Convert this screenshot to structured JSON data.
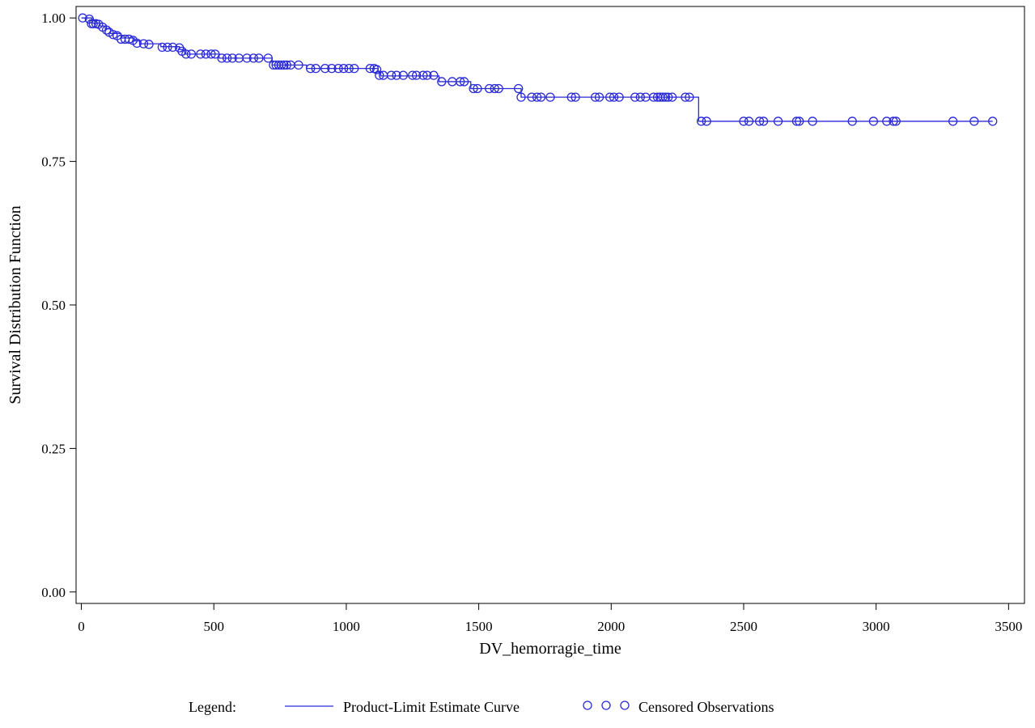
{
  "chart_data": {
    "type": "line",
    "title": "",
    "xlabel": "DV_hemorragie_time",
    "ylabel": "Survival Distribution Function",
    "xlim": [
      -20,
      3560
    ],
    "ylim": [
      -0.02,
      1.02
    ],
    "x_ticks": [
      0,
      500,
      1000,
      1500,
      2000,
      2500,
      3000,
      3500
    ],
    "x_tick_labels": [
      "0",
      "500",
      "1000",
      "1500",
      "2000",
      "2500",
      "3000",
      "3500"
    ],
    "y_ticks": [
      0.0,
      0.25,
      0.5,
      0.75,
      1.0
    ],
    "y_tick_labels": [
      "0.00",
      "0.25",
      "0.50",
      "0.75",
      "1.00"
    ],
    "grid": false,
    "line_color": "#2a2ad6",
    "legend": {
      "title": "Legend:",
      "placement": "bottom",
      "items": [
        {
          "label": "Product-Limit Estimate Curve",
          "kind": "line"
        },
        {
          "label": "Censored Observations",
          "kind": "circles"
        }
      ]
    },
    "series": [
      {
        "name": "Product-Limit Estimate Curve",
        "kind": "step",
        "x": [
          0,
          30,
          40,
          70,
          90,
          110,
          150,
          200,
          220,
          300,
          370,
          390,
          520,
          710,
          720,
          800,
          850,
          1000,
          1120,
          1130,
          1340,
          1350,
          1460,
          1470,
          1650,
          1660,
          2320,
          2330,
          3440
        ],
        "y": [
          1.0,
          1.0,
          0.991,
          0.986,
          0.981,
          0.973,
          0.965,
          0.96,
          0.955,
          0.95,
          0.945,
          0.937,
          0.93,
          0.93,
          0.918,
          0.918,
          0.912,
          0.912,
          0.906,
          0.899,
          0.899,
          0.889,
          0.889,
          0.877,
          0.877,
          0.862,
          0.862,
          0.82,
          0.82
        ]
      },
      {
        "name": "Censored Observations",
        "kind": "points",
        "points": [
          [
            5,
            1.0
          ],
          [
            30,
            0.998
          ],
          [
            38,
            0.99
          ],
          [
            45,
            0.99
          ],
          [
            55,
            0.99
          ],
          [
            65,
            0.989
          ],
          [
            80,
            0.984
          ],
          [
            95,
            0.979
          ],
          [
            105,
            0.975
          ],
          [
            120,
            0.971
          ],
          [
            135,
            0.969
          ],
          [
            150,
            0.963
          ],
          [
            165,
            0.963
          ],
          [
            180,
            0.963
          ],
          [
            195,
            0.961
          ],
          [
            210,
            0.956
          ],
          [
            235,
            0.955
          ],
          [
            255,
            0.954
          ],
          [
            305,
            0.949
          ],
          [
            325,
            0.949
          ],
          [
            345,
            0.949
          ],
          [
            370,
            0.948
          ],
          [
            380,
            0.942
          ],
          [
            395,
            0.937
          ],
          [
            415,
            0.937
          ],
          [
            450,
            0.937
          ],
          [
            470,
            0.937
          ],
          [
            490,
            0.937
          ],
          [
            505,
            0.937
          ],
          [
            530,
            0.93
          ],
          [
            550,
            0.93
          ],
          [
            570,
            0.93
          ],
          [
            595,
            0.93
          ],
          [
            625,
            0.93
          ],
          [
            650,
            0.93
          ],
          [
            670,
            0.93
          ],
          [
            705,
            0.93
          ],
          [
            725,
            0.918
          ],
          [
            735,
            0.918
          ],
          [
            745,
            0.918
          ],
          [
            755,
            0.918
          ],
          [
            765,
            0.918
          ],
          [
            775,
            0.918
          ],
          [
            790,
            0.918
          ],
          [
            820,
            0.918
          ],
          [
            865,
            0.912
          ],
          [
            885,
            0.912
          ],
          [
            920,
            0.912
          ],
          [
            945,
            0.912
          ],
          [
            970,
            0.912
          ],
          [
            990,
            0.912
          ],
          [
            1010,
            0.912
          ],
          [
            1030,
            0.912
          ],
          [
            1090,
            0.912
          ],
          [
            1105,
            0.912
          ],
          [
            1115,
            0.91
          ],
          [
            1125,
            0.9
          ],
          [
            1140,
            0.9
          ],
          [
            1170,
            0.9
          ],
          [
            1190,
            0.9
          ],
          [
            1215,
            0.9
          ],
          [
            1250,
            0.9
          ],
          [
            1265,
            0.9
          ],
          [
            1290,
            0.9
          ],
          [
            1305,
            0.9
          ],
          [
            1330,
            0.9
          ],
          [
            1360,
            0.889
          ],
          [
            1400,
            0.889
          ],
          [
            1430,
            0.889
          ],
          [
            1445,
            0.889
          ],
          [
            1480,
            0.877
          ],
          [
            1495,
            0.877
          ],
          [
            1540,
            0.877
          ],
          [
            1560,
            0.877
          ],
          [
            1575,
            0.877
          ],
          [
            1650,
            0.877
          ],
          [
            1660,
            0.862
          ],
          [
            1700,
            0.862
          ],
          [
            1720,
            0.862
          ],
          [
            1735,
            0.862
          ],
          [
            1770,
            0.862
          ],
          [
            1850,
            0.862
          ],
          [
            1865,
            0.862
          ],
          [
            1940,
            0.862
          ],
          [
            1955,
            0.862
          ],
          [
            1995,
            0.862
          ],
          [
            2010,
            0.862
          ],
          [
            2030,
            0.862
          ],
          [
            2090,
            0.862
          ],
          [
            2110,
            0.862
          ],
          [
            2130,
            0.862
          ],
          [
            2160,
            0.862
          ],
          [
            2175,
            0.862
          ],
          [
            2185,
            0.862
          ],
          [
            2195,
            0.862
          ],
          [
            2205,
            0.862
          ],
          [
            2215,
            0.862
          ],
          [
            2230,
            0.862
          ],
          [
            2280,
            0.862
          ],
          [
            2295,
            0.862
          ],
          [
            2340,
            0.82
          ],
          [
            2360,
            0.82
          ],
          [
            2500,
            0.82
          ],
          [
            2520,
            0.82
          ],
          [
            2560,
            0.82
          ],
          [
            2575,
            0.82
          ],
          [
            2630,
            0.82
          ],
          [
            2700,
            0.82
          ],
          [
            2710,
            0.82
          ],
          [
            2760,
            0.82
          ],
          [
            2910,
            0.82
          ],
          [
            2990,
            0.82
          ],
          [
            3040,
            0.82
          ],
          [
            3065,
            0.82
          ],
          [
            3075,
            0.82
          ],
          [
            3290,
            0.82
          ],
          [
            3370,
            0.82
          ],
          [
            3440,
            0.82
          ]
        ]
      }
    ]
  }
}
